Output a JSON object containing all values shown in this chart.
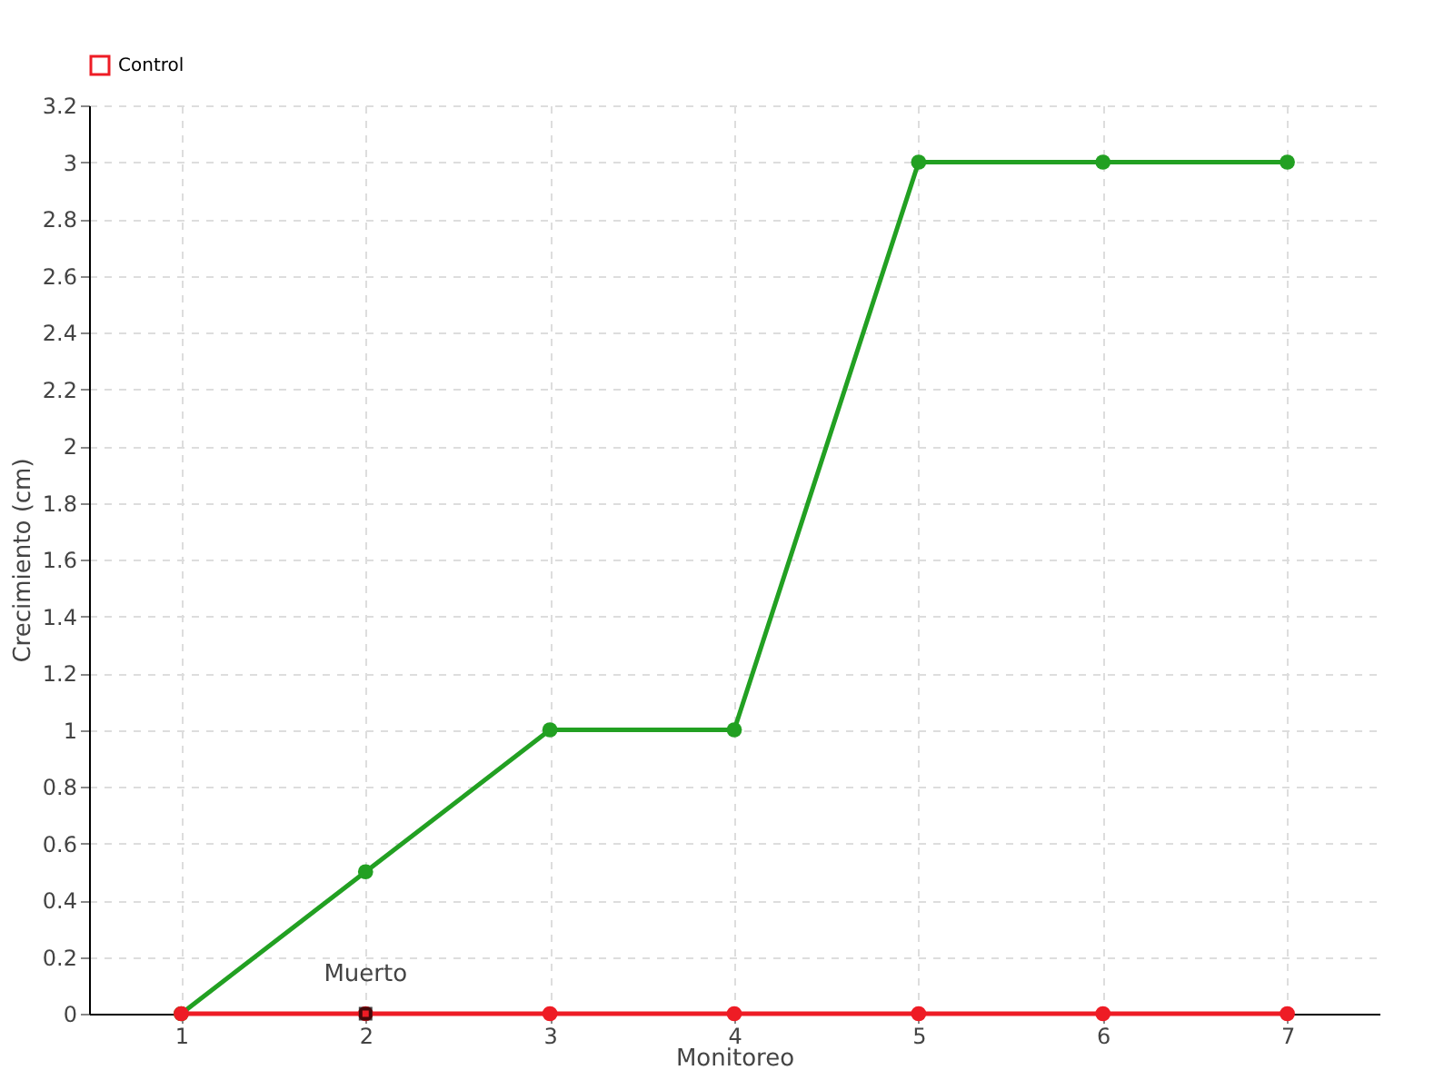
{
  "chart_data": {
    "type": "line",
    "categories": [
      "1",
      "2",
      "3",
      "4",
      "5",
      "6",
      "7"
    ],
    "series": [
      {
        "color": "#22a022",
        "values": [
          0,
          0.5,
          1,
          1,
          3,
          3,
          3
        ]
      },
      {
        "name": "Control",
        "color": "#ee1c25",
        "values": [
          0,
          0,
          0,
          0,
          0,
          0,
          0
        ]
      }
    ],
    "xlabel": "Monitoreo",
    "ylabel": "Crecimiento (cm)",
    "ylim": [
      0,
      3.2
    ],
    "yticks": [
      0,
      0.2,
      0.4,
      0.6,
      0.8,
      1,
      1.2,
      1.4,
      1.6,
      1.8,
      2,
      2.2,
      2.4,
      2.6,
      2.8,
      3,
      3.2
    ],
    "annotations": [
      {
        "text": "Muerto",
        "x": "2",
        "y": 0
      }
    ],
    "grid": true,
    "legend": "top left",
    "marker": "circle",
    "line_style": "solid"
  }
}
